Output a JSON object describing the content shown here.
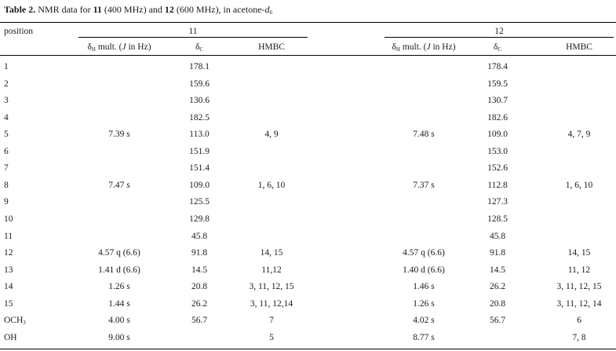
{
  "caption": {
    "label": "Table 2.",
    "text_a": " NMR data for ",
    "compound_a": "11",
    "text_b": " (400 MHz) and ",
    "compound_b": "12",
    "text_c": " (600 MHz), in acetone-",
    "solvent_italic": "d",
    "solvent_sub": "6"
  },
  "header": {
    "position_label": "position",
    "group_11": "11",
    "group_12": "12",
    "delta_h_symbol": "δ",
    "delta_h_sub": "H",
    "delta_h_rest": " mult. (",
    "delta_h_j": "J",
    "delta_h_end": " in Hz)",
    "delta_c_symbol": "δ",
    "delta_c_sub": "C",
    "hmbc": "HMBC"
  },
  "rows": [
    {
      "pos": "1",
      "h11": "",
      "c11": "178.1",
      "hmbc11": "",
      "h12": "",
      "c12": "178.4",
      "hmbc12": ""
    },
    {
      "pos": "2",
      "h11": "",
      "c11": "159.6",
      "hmbc11": "",
      "h12": "",
      "c12": "159.5",
      "hmbc12": ""
    },
    {
      "pos": "3",
      "h11": "",
      "c11": "130.6",
      "hmbc11": "",
      "h12": "",
      "c12": "130.7",
      "hmbc12": ""
    },
    {
      "pos": "4",
      "h11": "",
      "c11": "182.5",
      "hmbc11": "",
      "h12": "",
      "c12": "182.6",
      "hmbc12": ""
    },
    {
      "pos": "5",
      "h11": "7.39 s",
      "c11": "113.0",
      "hmbc11": "4, 9",
      "h12": "7.48 s",
      "c12": "109.0",
      "hmbc12": "4, 7, 9"
    },
    {
      "pos": "6",
      "h11": "",
      "c11": "151.9",
      "hmbc11": "",
      "h12": "",
      "c12": "153.0",
      "hmbc12": ""
    },
    {
      "pos": "7",
      "h11": "",
      "c11": "151.4",
      "hmbc11": "",
      "h12": "",
      "c12": "152.6",
      "hmbc12": ""
    },
    {
      "pos": "8",
      "h11": "7.47 s",
      "c11": "109.0",
      "hmbc11": "1, 6, 10",
      "h12": "7.37 s",
      "c12": "112.8",
      "hmbc12": "1, 6, 10"
    },
    {
      "pos": "9",
      "h11": "",
      "c11": "125.5",
      "hmbc11": "",
      "h12": "",
      "c12": "127.3",
      "hmbc12": ""
    },
    {
      "pos": "10",
      "h11": "",
      "c11": "129.8",
      "hmbc11": "",
      "h12": "",
      "c12": "128.5",
      "hmbc12": ""
    },
    {
      "pos": "11",
      "h11": "",
      "c11": "45.8",
      "hmbc11": "",
      "h12": "",
      "c12": "45.8",
      "hmbc12": ""
    },
    {
      "pos": "12",
      "h11": "4.57 q (6.6)",
      "c11": "91.8",
      "hmbc11": "14, 15",
      "h12": "4.57 q (6.6)",
      "c12": "91.8",
      "hmbc12": "14, 15"
    },
    {
      "pos": "13",
      "h11": "1.41 d (6.6)",
      "c11": "14.5",
      "hmbc11": "11,12",
      "h12": "1.40 d (6.6)",
      "c12": "14.5",
      "hmbc12": "11, 12"
    },
    {
      "pos": "14",
      "h11": "1.26 s",
      "c11": "20.8",
      "hmbc11": "3, 11, 12, 15",
      "h12": "1.46 s",
      "c12": "26.2",
      "hmbc12": "3, 11, 12, 15"
    },
    {
      "pos": "15",
      "h11": "1.44 s",
      "c11": "26.2",
      "hmbc11": "3, 11, 12,14",
      "h12": "1.26 s",
      "c12": "20.8",
      "hmbc12": "3, 11, 12, 14"
    },
    {
      "pos": "OCH",
      "pos_sub": "3",
      "h11": "4.00 s",
      "c11": "56.7",
      "hmbc11": "7",
      "h12": "4.02 s",
      "c12": "56.7",
      "hmbc12": "6"
    },
    {
      "pos": "OH",
      "h11": "9.00 s",
      "c11": "",
      "hmbc11": "5",
      "h12": "8.77 s",
      "c12": "",
      "hmbc12": "7, 8"
    }
  ]
}
